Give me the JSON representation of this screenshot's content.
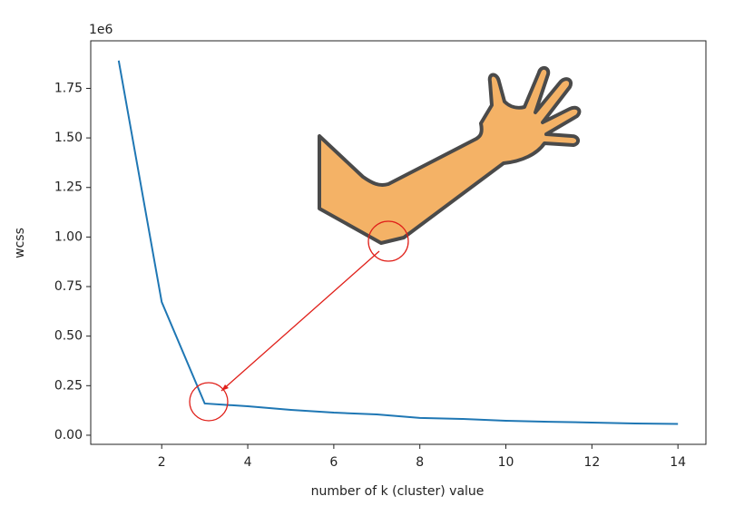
{
  "chart_data": {
    "type": "line",
    "x_label": "number of k (cluster) value",
    "y_label": "wcss",
    "y_offset_text": "1e6",
    "x": [
      1,
      2,
      3,
      4,
      5,
      6,
      7,
      8,
      9,
      10,
      11,
      12,
      13,
      14
    ],
    "values": [
      1890000,
      672000,
      160000,
      146000,
      128000,
      114000,
      105000,
      87000,
      82000,
      73000,
      68000,
      64000,
      59000,
      57000
    ],
    "color": "#1f77b4",
    "xlim": [
      0.35,
      14.65
    ],
    "xticks": [
      2,
      4,
      6,
      8,
      10,
      12,
      14
    ],
    "ylim": [
      -46000,
      1990000
    ],
    "yticks": [
      {
        "value": 0,
        "label": "0.00"
      },
      {
        "value": 250000,
        "label": "0.25"
      },
      {
        "value": 500000,
        "label": "0.50"
      },
      {
        "value": 750000,
        "label": "0.75"
      },
      {
        "value": 1000000,
        "label": "1.00"
      },
      {
        "value": 1250000,
        "label": "1.25"
      },
      {
        "value": 1500000,
        "label": "1.50"
      },
      {
        "value": 1750000,
        "label": "1.75"
      }
    ],
    "grid": false
  }
}
